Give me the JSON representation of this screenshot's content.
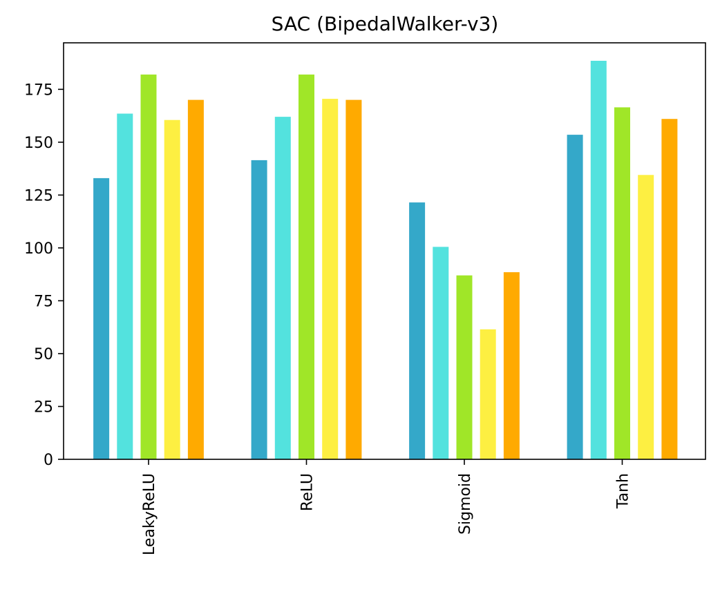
{
  "chart_data": {
    "type": "bar",
    "title": "SAC (BipedalWalker-v3)",
    "xlabel": "",
    "ylabel": "",
    "categories": [
      "LeakyReLU",
      "ReLU",
      "Sigmoid",
      "Tanh"
    ],
    "ylim": [
      0,
      197
    ],
    "yticks": [
      0,
      25,
      50,
      75,
      100,
      125,
      150,
      175
    ],
    "grid": false,
    "legend": "none",
    "series": [
      {
        "color": "#34a8c9",
        "values": [
          133,
          141.5,
          121.5,
          153.5
        ]
      },
      {
        "color": "#53e2de",
        "values": [
          163.5,
          162,
          100.5,
          188.5
        ]
      },
      {
        "color": "#a0e628",
        "values": [
          182,
          182,
          87,
          166.5
        ]
      },
      {
        "color": "#fdef42",
        "values": [
          160.5,
          170.5,
          61.5,
          134.5
        ]
      },
      {
        "color": "#ffaa00",
        "values": [
          170,
          170,
          88.5,
          161
        ]
      }
    ]
  }
}
